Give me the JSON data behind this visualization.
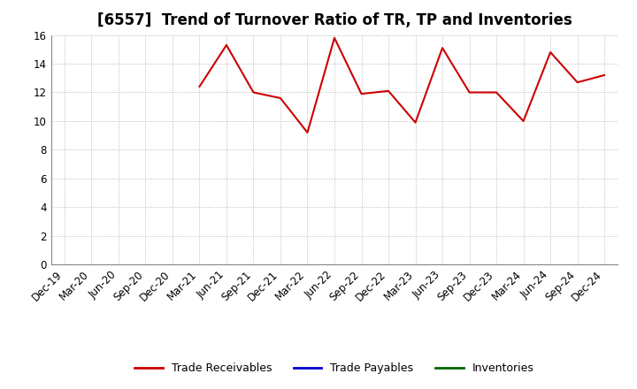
{
  "title": "[6557]  Trend of Turnover Ratio of TR, TP and Inventories",
  "x_labels": [
    "Dec-19",
    "Mar-20",
    "Jun-20",
    "Sep-20",
    "Dec-20",
    "Mar-21",
    "Jun-21",
    "Sep-21",
    "Dec-21",
    "Mar-22",
    "Jun-22",
    "Sep-22",
    "Dec-22",
    "Mar-23",
    "Jun-23",
    "Sep-23",
    "Dec-23",
    "Mar-24",
    "Jun-24",
    "Sep-24",
    "Dec-24"
  ],
  "trade_receivables": [
    null,
    null,
    null,
    null,
    null,
    12.4,
    15.3,
    12.0,
    11.6,
    9.2,
    15.8,
    11.9,
    12.1,
    9.9,
    15.1,
    12.0,
    12.0,
    10.0,
    14.8,
    12.7,
    13.2
  ],
  "trade_payables": [
    null,
    null,
    null,
    null,
    null,
    null,
    null,
    null,
    null,
    null,
    null,
    null,
    null,
    null,
    null,
    null,
    null,
    null,
    null,
    null,
    null
  ],
  "inventories": [
    null,
    null,
    null,
    null,
    null,
    null,
    null,
    null,
    null,
    null,
    null,
    null,
    null,
    null,
    null,
    null,
    null,
    null,
    null,
    null,
    null
  ],
  "ylim": [
    0.0,
    16.0
  ],
  "yticks": [
    0,
    2,
    4,
    6,
    8,
    10,
    12,
    14,
    16
  ],
  "ytick_labels": [
    "0",
    "2",
    "4",
    "6",
    "8",
    "10",
    "12",
    "14",
    "16"
  ],
  "line_color_tr": "#CC0000",
  "line_color_tp": "#0000CC",
  "line_color_inv": "#006600",
  "legend_labels": [
    "Trade Receivables",
    "Trade Payables",
    "Inventories"
  ],
  "background_color": "#FFFFFF",
  "grid_color": "#AAAAAA",
  "title_fontsize": 12,
  "tick_fontsize": 8.5,
  "legend_fontsize": 9
}
